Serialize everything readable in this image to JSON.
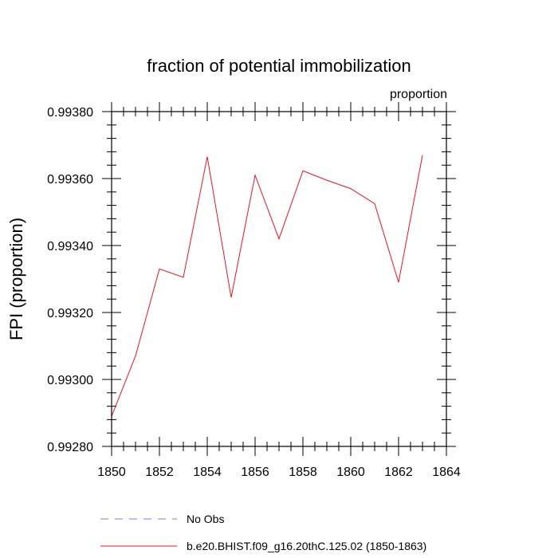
{
  "chart_data": {
    "type": "line",
    "title": "fraction of potential immobilization",
    "subtitle": "proportion",
    "ylabel": "FPI  (proportion)",
    "xlabel": "",
    "xlim": [
      1850,
      1864
    ],
    "ylim": [
      0.9928,
      0.9938
    ],
    "x_ticks": [
      "1850",
      "1852",
      "1854",
      "1856",
      "1858",
      "1860",
      "1862",
      "1864"
    ],
    "y_ticks": [
      "0.99280",
      "0.99300",
      "0.99320",
      "0.99340",
      "0.99360",
      "0.99380"
    ],
    "grid": false,
    "legend_position": "bottom",
    "series": [
      {
        "name": "b.e20.BHIST.f09_g16.20thC.125.02 (1850-1863)",
        "color": "#e8141e",
        "dash": "solid",
        "x": [
          1850,
          1851,
          1852,
          1853,
          1854,
          1855,
          1856,
          1857,
          1858,
          1859,
          1860,
          1861,
          1862,
          1863
        ],
        "y": [
          0.99289,
          0.99307,
          0.99333,
          0.993305,
          0.993665,
          0.993245,
          0.99361,
          0.99342,
          0.993623,
          0.993595,
          0.99357,
          0.993525,
          0.99329,
          0.99367
        ]
      }
    ],
    "legend": [
      {
        "label": "No Obs",
        "color": "#7b7bd6",
        "dash": "dashed"
      },
      {
        "label": "b.e20.BHIST.f09_g16.20thC.125.02 (1850-1863)",
        "color": "#e8141e",
        "dash": "solid"
      }
    ]
  }
}
